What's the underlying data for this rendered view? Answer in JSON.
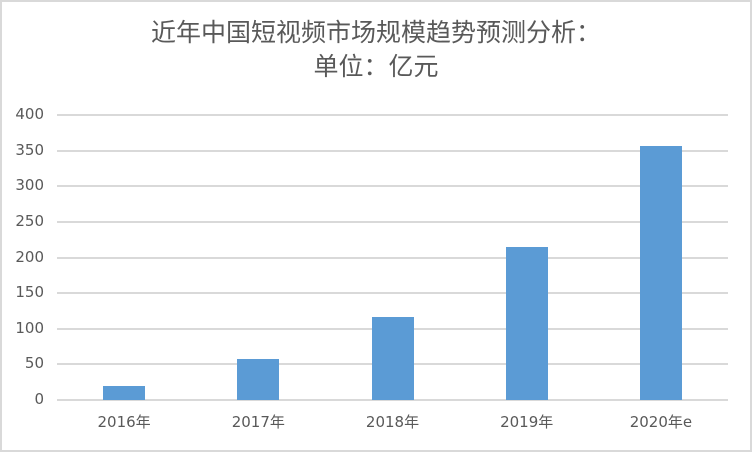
{
  "chart_data": {
    "type": "bar",
    "title": "近年中国短视频市场规模趋势预测分析：单位：亿元",
    "title_lines": [
      "近年中国短视频市场规模趋势预测分析：",
      "单位：亿元"
    ],
    "xlabel": "",
    "ylabel": "",
    "categories": [
      "2016年",
      "2017年",
      "2018年",
      "2019年",
      "2020年e"
    ],
    "values": [
      19,
      57,
      117,
      215,
      357
    ],
    "ylim": [
      0,
      400
    ],
    "yticks": [
      "0",
      "50",
      "100",
      "150",
      "200",
      "250",
      "300",
      "350",
      "400"
    ],
    "grid": true,
    "legend": "none",
    "bar_color": "#5b9bd5"
  }
}
